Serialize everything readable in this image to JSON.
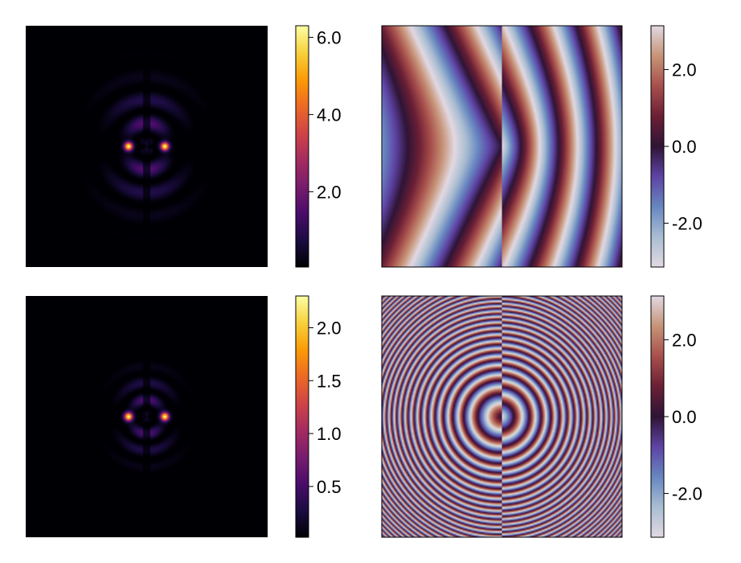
{
  "chart_data": [
    {
      "type": "heatmap",
      "title": "",
      "xlabel": "",
      "ylabel": "",
      "colormap": "inferno",
      "colorbar": {
        "range": [
          0.05,
          6.3
        ],
        "ticks": [
          2.0,
          4.0,
          6.0
        ],
        "tick_labels": [
          "2.0",
          "4.0",
          "6.0"
        ]
      },
      "peak_value": 6.3
    },
    {
      "type": "heatmap",
      "title": "",
      "xlabel": "",
      "ylabel": "",
      "colormap": "twilight",
      "colorbar": {
        "range": [
          -3.14,
          3.14
        ],
        "ticks": [
          -2.0,
          0.0,
          2.0
        ],
        "tick_labels": [
          "-2.0",
          "0.0",
          "2.0"
        ]
      }
    },
    {
      "type": "heatmap",
      "title": "",
      "xlabel": "",
      "ylabel": "",
      "colormap": "inferno",
      "colorbar": {
        "range": [
          0.02,
          2.3
        ],
        "ticks": [
          0.5,
          1.0,
          1.5,
          2.0
        ],
        "tick_labels": [
          "0.5",
          "1.0",
          "1.5",
          "2.0"
        ]
      },
      "peak_value": 2.3
    },
    {
      "type": "heatmap",
      "title": "",
      "xlabel": "",
      "ylabel": "",
      "colormap": "twilight",
      "colorbar": {
        "range": [
          -3.14,
          3.14
        ],
        "ticks": [
          -2.0,
          0.0,
          2.0
        ],
        "tick_labels": [
          "-2.0",
          "0.0",
          "2.0"
        ]
      }
    }
  ],
  "colors": {
    "inferno": [
      "#000004",
      "#1b0c41",
      "#4a0c6b",
      "#781c6d",
      "#a52c60",
      "#cf4446",
      "#ed6925",
      "#fb9b06",
      "#f7d13d",
      "#fcffa4"
    ],
    "twilight": [
      "#e2d9e2",
      "#a9bdd2",
      "#6787c0",
      "#5e43a5",
      "#2f1436",
      "#6b1f35",
      "#a84f4c",
      "#c79478",
      "#e2d9e2"
    ]
  }
}
